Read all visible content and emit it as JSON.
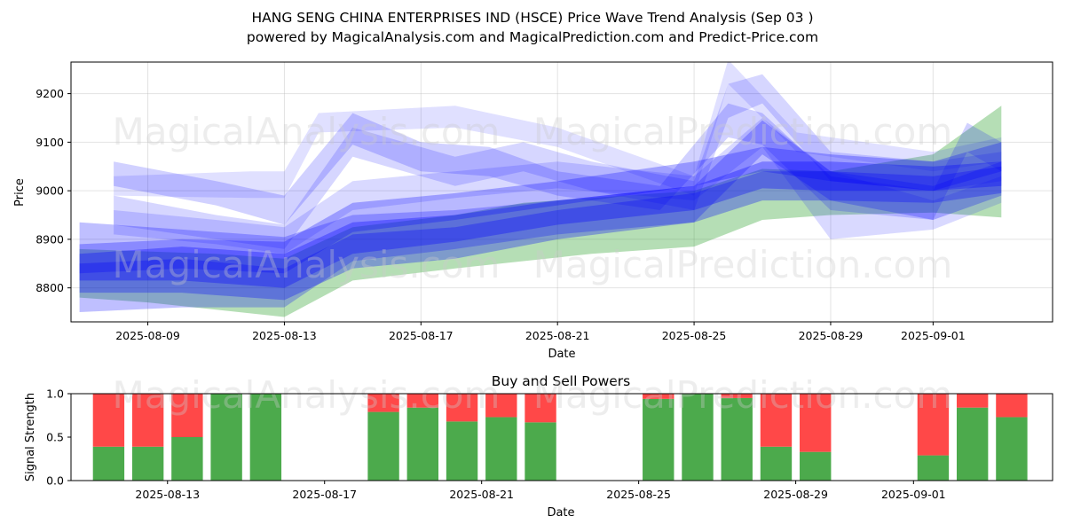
{
  "title_line1": "HANG SENG CHINA ENTERPRISES IND (HSCE) Price Wave Trend Analysis (Sep 03 )",
  "title_line2": "powered by MagicalAnalysis.com and MagicalPrediction.com and Predict-Price.com",
  "watermarks": [
    "MagicalAnalysis.com",
    "MagicalPrediction.com"
  ],
  "chart_data": [
    {
      "type": "area",
      "title": "",
      "xlabel": "Date",
      "ylabel": "Price",
      "xlim": [
        "2025-08-06T18:00",
        "2025-09-04T12:00"
      ],
      "ylim": [
        8730,
        9265
      ],
      "x_ticks": [
        "2025-08-09",
        "2025-08-13",
        "2025-08-17",
        "2025-08-21",
        "2025-08-25",
        "2025-08-29",
        "2025-09-01"
      ],
      "y_ticks": [
        8800,
        8900,
        9000,
        9100,
        9200
      ],
      "grid": true,
      "colors": {
        "green": "#2ca02c",
        "blue": "#0000ff"
      },
      "green_band": {
        "x": [
          "2025-08-07",
          "2025-08-09",
          "2025-08-11",
          "2025-08-13",
          "2025-08-15",
          "2025-08-18",
          "2025-08-20",
          "2025-08-22",
          "2025-08-25",
          "2025-08-27",
          "2025-08-29",
          "2025-09-01",
          "2025-09-03"
        ],
        "upper": [
          8880,
          8875,
          8870,
          8860,
          8925,
          8950,
          8975,
          8985,
          9000,
          9045,
          9040,
          9075,
          9175
        ],
        "lower": [
          8780,
          8770,
          8755,
          8740,
          8815,
          8840,
          8855,
          8870,
          8885,
          8940,
          8950,
          8955,
          8945
        ]
      },
      "blue_waves": [
        {
          "x": [
            "2025-08-07",
            "2025-08-10",
            "2025-08-13",
            "2025-08-15",
            "2025-08-18",
            "2025-08-21",
            "2025-08-25",
            "2025-08-27",
            "2025-08-29",
            "2025-09-01",
            "2025-09-03"
          ],
          "upper": [
            8870,
            8885,
            8870,
            8935,
            8950,
            8980,
            9010,
            9060,
            9060,
            9050,
            9060
          ],
          "lower": [
            8815,
            8815,
            8800,
            8870,
            8895,
            8930,
            8960,
            9005,
            9000,
            9000,
            9010
          ],
          "opacity": 0.32
        },
        {
          "x": [
            "2025-08-07",
            "2025-08-10",
            "2025-08-13",
            "2025-08-15",
            "2025-08-18",
            "2025-08-21",
            "2025-08-25",
            "2025-08-27",
            "2025-08-29",
            "2025-09-01",
            "2025-09-03"
          ],
          "upper": [
            8850,
            8860,
            8840,
            8910,
            8925,
            8960,
            8995,
            9040,
            9040,
            9030,
            9050
          ],
          "lower": [
            8790,
            8790,
            8775,
            8840,
            8860,
            8900,
            8935,
            8980,
            8980,
            8975,
            8995
          ],
          "opacity": 0.3
        },
        {
          "x": [
            "2025-08-07",
            "2025-08-10",
            "2025-08-13",
            "2025-08-15",
            "2025-08-18",
            "2025-08-21",
            "2025-08-25",
            "2025-08-27",
            "2025-08-29",
            "2025-09-01",
            "2025-09-03"
          ],
          "upper": [
            8890,
            8900,
            8895,
            8975,
            8995,
            9020,
            9060,
            9090,
            9075,
            9060,
            9100
          ],
          "lower": [
            8830,
            8840,
            8830,
            8915,
            8940,
            8970,
            9010,
            9040,
            9020,
            9000,
            9040
          ],
          "opacity": 0.28
        },
        {
          "x": [
            "2025-08-07",
            "2025-08-10",
            "2025-08-13",
            "2025-08-15",
            "2025-08-18",
            "2025-08-21",
            "2025-08-25",
            "2025-08-27",
            "2025-08-29",
            "2025-09-01",
            "2025-09-03"
          ],
          "upper": [
            8935,
            8920,
            8905,
            8950,
            8960,
            8980,
            9010,
            9145,
            9040,
            9010,
            9060
          ],
          "lower": [
            8750,
            8760,
            8760,
            8855,
            8880,
            8910,
            8935,
            9075,
            8980,
            8940,
            8990
          ],
          "opacity": 0.25
        },
        {
          "x": [
            "2025-08-08",
            "2025-08-11",
            "2025-08-13",
            "2025-08-15",
            "2025-08-17",
            "2025-08-19",
            "2025-08-21",
            "2025-08-24",
            "2025-08-26",
            "2025-08-27",
            "2025-08-29",
            "2025-09-01",
            "2025-09-02",
            "2025-09-03"
          ],
          "upper": [
            9060,
            9020,
            8990,
            9160,
            9100,
            9090,
            9040,
            9010,
            9180,
            9160,
            9030,
            9000,
            9140,
            9100
          ],
          "lower": [
            9010,
            8970,
            8930,
            9095,
            9040,
            9030,
            8990,
            8960,
            9110,
            9095,
            8960,
            8940,
            9080,
            9040
          ],
          "opacity": 0.18
        },
        {
          "x": [
            "2025-08-08",
            "2025-08-11",
            "2025-08-13",
            "2025-08-15",
            "2025-08-18",
            "2025-08-20",
            "2025-08-22",
            "2025-08-25",
            "2025-08-26",
            "2025-08-27",
            "2025-08-29",
            "2025-09-01",
            "2025-09-03"
          ],
          "upper": [
            8990,
            8950,
            8930,
            9130,
            9070,
            9100,
            9060,
            9020,
            9220,
            9240,
            9080,
            9060,
            9080
          ],
          "lower": [
            8930,
            8900,
            8880,
            9070,
            9010,
            9040,
            9000,
            8960,
            9150,
            9180,
            9020,
            9000,
            9020
          ],
          "opacity": 0.16
        },
        {
          "x": [
            "2025-08-08",
            "2025-08-12",
            "2025-08-13",
            "2025-08-14",
            "2025-08-18",
            "2025-08-21",
            "2025-08-25",
            "2025-08-26",
            "2025-08-28",
            "2025-09-01",
            "2025-09-03"
          ],
          "upper": [
            9030,
            9040,
            9040,
            9160,
            9175,
            9130,
            9030,
            9270,
            9120,
            9080,
            9110
          ],
          "lower": [
            8990,
            8985,
            8985,
            9120,
            9130,
            9090,
            8990,
            9220,
            9080,
            9040,
            9060
          ],
          "opacity": 0.12
        },
        {
          "x": [
            "2025-08-08",
            "2025-08-11",
            "2025-08-13",
            "2025-08-15",
            "2025-08-18",
            "2025-08-21",
            "2025-08-25",
            "2025-08-27",
            "2025-08-29",
            "2025-09-01",
            "2025-09-03"
          ],
          "upper": [
            8960,
            8940,
            8925,
            9020,
            9040,
            9060,
            9030,
            9150,
            9040,
            8980,
            9030
          ],
          "lower": [
            8910,
            8890,
            8870,
            8960,
            8985,
            9005,
            8980,
            9090,
            8900,
            8920,
            8975
          ],
          "opacity": 0.15
        }
      ]
    },
    {
      "type": "bar",
      "title": "Buy and Sell Powers",
      "xlabel": "Date",
      "ylabel": "Signal Strength",
      "xlim": [
        "2025-08-10T13:00",
        "2025-09-04T13:00"
      ],
      "ylim": [
        0,
        1
      ],
      "y_ticks": [
        "0.0",
        "0.5",
        "1.0"
      ],
      "x_ticks": [
        "2025-08-13",
        "2025-08-17",
        "2025-08-21",
        "2025-08-25",
        "2025-08-29",
        "2025-09-01"
      ],
      "colors": {
        "buy": "#4caa4c",
        "sell": "#ff4848"
      },
      "bars": [
        {
          "date": "2025-08-11",
          "buy": 0.39
        },
        {
          "date": "2025-08-12",
          "buy": 0.39
        },
        {
          "date": "2025-08-13",
          "buy": 0.5
        },
        {
          "date": "2025-08-14",
          "buy": 1.0
        },
        {
          "date": "2025-08-15",
          "buy": 1.0
        },
        {
          "date": "2025-08-18",
          "buy": 0.79
        },
        {
          "date": "2025-08-19",
          "buy": 0.84
        },
        {
          "date": "2025-08-20",
          "buy": 0.68
        },
        {
          "date": "2025-08-21",
          "buy": 0.73
        },
        {
          "date": "2025-08-22",
          "buy": 0.67
        },
        {
          "date": "2025-08-25",
          "buy": 0.94
        },
        {
          "date": "2025-08-26",
          "buy": 1.0
        },
        {
          "date": "2025-08-27",
          "buy": 0.95
        },
        {
          "date": "2025-08-28",
          "buy": 0.39
        },
        {
          "date": "2025-08-29",
          "buy": 0.33
        },
        {
          "date": "2025-09-01",
          "buy": 0.29
        },
        {
          "date": "2025-09-02",
          "buy": 0.84
        },
        {
          "date": "2025-09-03",
          "buy": 0.73
        }
      ]
    }
  ]
}
